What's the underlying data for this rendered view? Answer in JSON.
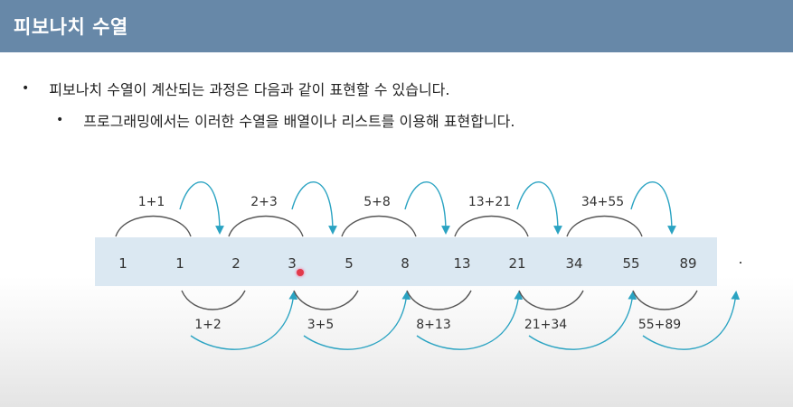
{
  "slide": {
    "title": "피보나치 수열",
    "bullets": [
      "피보나치 수열이 계산되는 과정은 다음과 같이 표현할 수 있습니다.",
      "프로그래밍에서는 이러한 수열을 배열이나 리스트를 이용해 표현합니다."
    ]
  },
  "diagram": {
    "sequence": [
      "1",
      "1",
      "2",
      "3",
      "5",
      "8",
      "13",
      "21",
      "34",
      "55",
      "89"
    ],
    "top_sums": [
      "1+1",
      "2+3",
      "5+8",
      "13+21",
      "34+55"
    ],
    "bottom_sums": [
      "1+2",
      "3+5",
      "8+13",
      "21+34",
      "55+89"
    ]
  },
  "colors": {
    "title_bar": "#6788a8",
    "band": "#dbe8f2",
    "arc_dark": "#555555",
    "arc_teal": "#2aa3c2"
  }
}
